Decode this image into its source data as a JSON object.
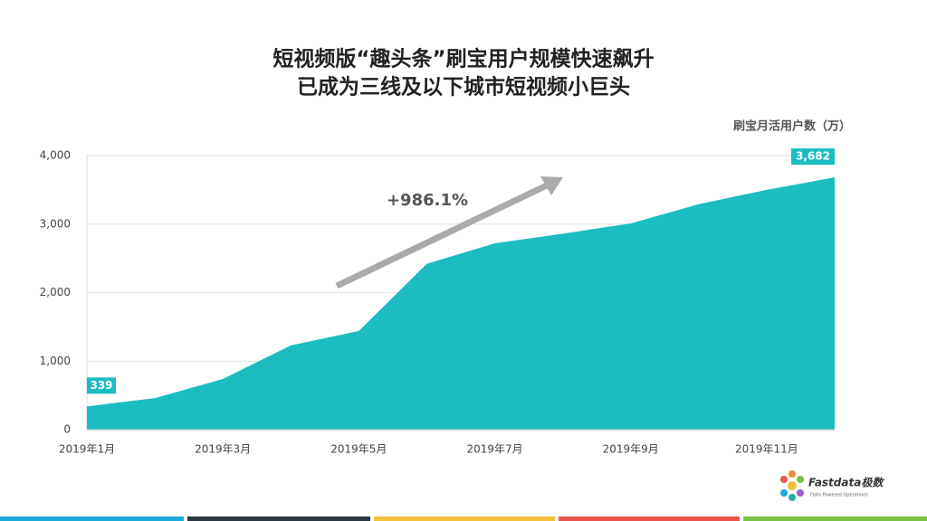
{
  "chart_data": {
    "type": "area",
    "title": "短视频版“趣头条”刷宝用户规模快速飙升",
    "subtitle": "已成为三线及以下城市短视频小巨头",
    "y_label": "刷宝月活用户数（万）",
    "annotation": "+986.1%",
    "brand": "Fastdata极数",
    "brand_tagline": "Data Powered Operations",
    "categories": [
      "2019年1月",
      null,
      "2019年3月",
      null,
      "2019年5月",
      null,
      "2019年7月",
      null,
      "2019年9月",
      null,
      "2019年11月",
      null
    ],
    "series": [
      {
        "name": "刷宝月活用户数",
        "color": "#1bbdc1",
        "values": [
          339,
          460,
          740,
          1230,
          1440,
          2420,
          2720,
          2860,
          3010,
          3290,
          3500,
          3682
        ],
        "value_labels": [
          "339",
          null,
          null,
          null,
          null,
          null,
          null,
          null,
          null,
          null,
          null,
          "3,682"
        ]
      }
    ],
    "ylim": [
      0,
      4000
    ],
    "yticks": [
      0,
      {
        "value": 1000,
        "label": "1,000"
      },
      {
        "value": 2000,
        "label": "2,000"
      },
      {
        "value": 3000,
        "label": "3,000"
      },
      {
        "value": 4000,
        "label": "4,000"
      }
    ],
    "grid": true
  }
}
